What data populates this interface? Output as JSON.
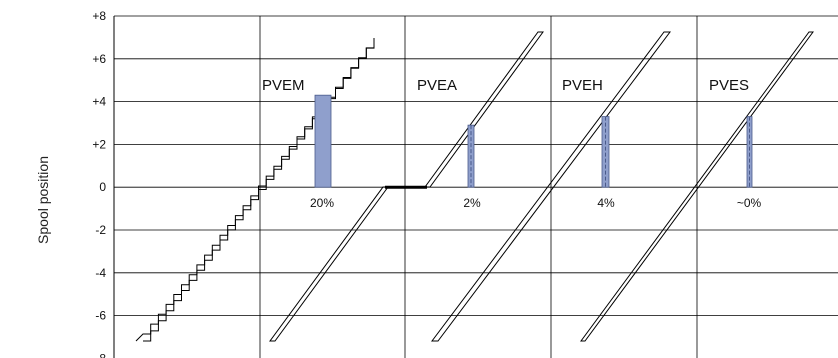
{
  "chart_data": {
    "type": "line",
    "ylabel": "Spool position",
    "ylim": [
      -8,
      8
    ],
    "y_ticks": [
      "+8",
      "+6",
      "+4",
      "+2",
      "0",
      "-2",
      "-4",
      "-6",
      "-8"
    ],
    "y_tick_values": [
      8,
      6,
      4,
      2,
      0,
      -2,
      -4,
      -6,
      -8
    ],
    "grid": true,
    "panels": [
      {
        "label": "PVEM",
        "hysteresis": "20%"
      },
      {
        "label": "PVEA",
        "hysteresis": "2%"
      },
      {
        "label": "PVEH",
        "hysteresis": "4%"
      },
      {
        "label": "PVES",
        "hysteresis": "~0%"
      }
    ],
    "colors": {
      "band": "#8f9fcc",
      "band_dash": "#4a5a8a",
      "line": "#000000",
      "grid": "#000000"
    }
  }
}
